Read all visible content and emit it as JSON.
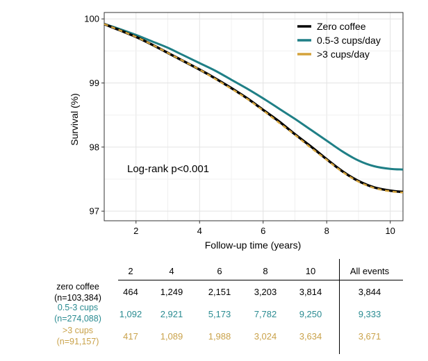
{
  "chart_data": {
    "type": "line",
    "xlabel": "Follow-up time (years)",
    "ylabel": "Survival (%)",
    "xlim": [
      1,
      10.4
    ],
    "ylim": [
      96.85,
      100.1
    ],
    "xticks": [
      2,
      4,
      6,
      8,
      10
    ],
    "yticks": [
      97,
      98,
      99,
      100
    ],
    "grid": true,
    "legend_position": "top-right",
    "annotation": "Log-rank p<0.001",
    "series": [
      {
        "name": "Zero coffee",
        "color": "#000000",
        "x": [
          1,
          1.5,
          2,
          2.5,
          3,
          3.5,
          4,
          4.5,
          5,
          5.5,
          6,
          6.5,
          7,
          7.5,
          8,
          8.5,
          9,
          9.5,
          10,
          10.4
        ],
        "y": [
          99.92,
          99.82,
          99.72,
          99.6,
          99.47,
          99.34,
          99.21,
          99.07,
          98.92,
          98.76,
          98.58,
          98.4,
          98.2,
          98.01,
          97.81,
          97.62,
          97.47,
          97.37,
          97.32,
          97.3
        ]
      },
      {
        "name": "0.5-3 cups/day",
        "color": "#1f7f86",
        "x": [
          1,
          1.5,
          2,
          2.5,
          3,
          3.5,
          4,
          4.5,
          5,
          5.5,
          6,
          6.5,
          7,
          7.5,
          8,
          8.5,
          9,
          9.5,
          10,
          10.4
        ],
        "y": [
          99.92,
          99.84,
          99.75,
          99.65,
          99.55,
          99.43,
          99.31,
          99.19,
          99.05,
          98.91,
          98.76,
          98.6,
          98.44,
          98.27,
          98.1,
          97.93,
          97.79,
          97.7,
          97.66,
          97.65
        ]
      },
      {
        "name": ">3 cups/day",
        "color": "#d4a23a",
        "x": [
          1,
          1.5,
          2,
          2.5,
          3,
          3.5,
          4,
          4.5,
          5,
          5.5,
          6,
          6.5,
          7,
          7.5,
          8,
          8.5,
          9,
          9.5,
          10,
          10.4
        ],
        "y": [
          99.92,
          99.82,
          99.72,
          99.6,
          99.47,
          99.34,
          99.21,
          99.06,
          98.91,
          98.75,
          98.57,
          98.38,
          98.19,
          97.99,
          97.8,
          97.61,
          97.46,
          97.36,
          97.31,
          97.29
        ]
      }
    ]
  },
  "table": {
    "headers": [
      "2",
      "4",
      "6",
      "8",
      "10"
    ],
    "all_events_header": "All events",
    "rows": [
      {
        "label": "zero coffee",
        "n": "(n=103,384)",
        "color": "#000000",
        "values": [
          "464",
          "1,249",
          "2,151",
          "3,203",
          "3,814"
        ],
        "all": "3,844"
      },
      {
        "label": "0.5-3 cups",
        "n": "(n=274,088)",
        "color": "#2a8b91",
        "values": [
          "1,092",
          "2,921",
          "5,173",
          "7,782",
          "9,250"
        ],
        "all": "9,333"
      },
      {
        "label": ">3 cups",
        "n": "(n=91,157)",
        "color": "#c9a24a",
        "values": [
          "417",
          "1,089",
          "1,988",
          "3,024",
          "3,634"
        ],
        "all": "3,671"
      }
    ]
  }
}
